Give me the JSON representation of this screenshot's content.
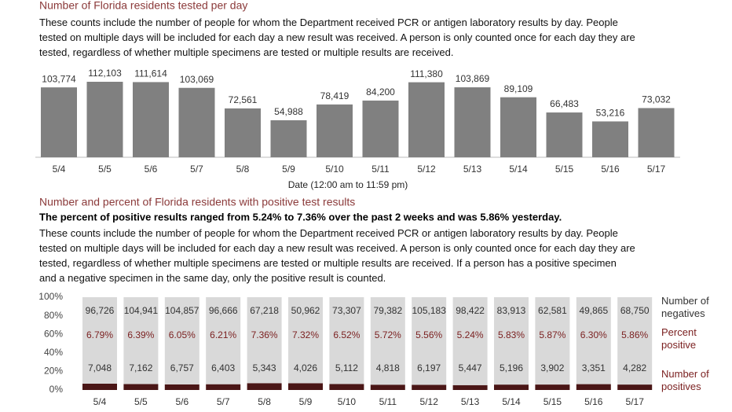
{
  "chart_data": [
    {
      "type": "bar",
      "title": "Number of Florida residents tested per day",
      "description": "These counts include the number of people for whom the Department received PCR or antigen laboratory results by day. People tested on multiple days will be included for each day a new result was received. A person is only counted once for each day they are tested, regardless of whether multiple specimens are tested or multiple results are received.",
      "xlabel": "Date (12:00 am to 11:59 pm)",
      "categories": [
        "5/4",
        "5/5",
        "5/6",
        "5/7",
        "5/8",
        "5/9",
        "5/10",
        "5/11",
        "5/12",
        "5/13",
        "5/14",
        "5/15",
        "5/16",
        "5/17"
      ],
      "values": [
        103774,
        112103,
        111614,
        103069,
        72561,
        54988,
        78419,
        84200,
        111380,
        103869,
        89109,
        66483,
        53216,
        73032
      ],
      "value_labels": [
        "103,774",
        "112,103",
        "111,614",
        "103,069",
        "72,561",
        "54,988",
        "78,419",
        "84,200",
        "111,380",
        "103,869",
        "89,109",
        "66,483",
        "53,216",
        "73,032"
      ],
      "color": "#808080"
    },
    {
      "type": "stacked_percent",
      "title": "Number and percent of Florida residents with positive test results",
      "subtitle": "The percent of positive results ranged from 5.24% to 7.36% over the past 2 weeks and was 5.86% yesterday.",
      "description": "These counts include the number of people for whom the Department received PCR or antigen laboratory results by day. People tested on multiple days will be included for each day a new result was received. A person is only counted once for each day they are tested, regardless of whether multiple specimens are tested or multiple results are received. If a person has a positive specimen and a negative specimen in the same day, only the positive result is counted.",
      "categories": [
        "5/4",
        "5/5",
        "5/6",
        "5/7",
        "5/8",
        "5/9",
        "5/10",
        "5/11",
        "5/12",
        "5/13",
        "5/14",
        "5/15",
        "5/16",
        "5/17"
      ],
      "ylim": [
        0,
        100
      ],
      "yticks": [
        {
          "value": 0,
          "label": "0%"
        },
        {
          "value": 20,
          "label": "20%"
        },
        {
          "value": 40,
          "label": "40%"
        },
        {
          "value": 60,
          "label": "60%"
        },
        {
          "value": 80,
          "label": "80%"
        },
        {
          "value": 100,
          "label": "100%"
        }
      ],
      "series": [
        {
          "name": "Number of positives",
          "color": "#4a1616",
          "values": [
            7048,
            7162,
            6757,
            6403,
            5343,
            4026,
            5112,
            4818,
            6197,
            5447,
            5196,
            3902,
            3351,
            4282
          ],
          "value_labels": [
            "7,048",
            "7,162",
            "6,757",
            "6,403",
            "5,343",
            "4,026",
            "5,112",
            "4,818",
            "6,197",
            "5,447",
            "5,196",
            "3,902",
            "3,351",
            "4,282"
          ]
        },
        {
          "name": "Number of negatives",
          "color": "#d9d9d9",
          "values": [
            96726,
            104941,
            104857,
            96666,
            67218,
            50962,
            73307,
            79382,
            105183,
            98422,
            83913,
            62581,
            49865,
            68750
          ],
          "value_labels": [
            "96,726",
            "104,941",
            "104,857",
            "96,666",
            "67,218",
            "50,962",
            "73,307",
            "79,382",
            "105,183",
            "98,422",
            "83,913",
            "62,581",
            "49,865",
            "68,750"
          ]
        }
      ],
      "percent_positive": {
        "name": "Percent positive",
        "color": "#7a1f1f",
        "values": [
          6.79,
          6.39,
          6.05,
          6.21,
          7.36,
          7.32,
          6.52,
          5.72,
          5.56,
          5.24,
          5.83,
          5.87,
          6.3,
          5.86
        ],
        "value_labels": [
          "6.79%",
          "6.39%",
          "6.05%",
          "6.21%",
          "7.36%",
          "7.32%",
          "6.52%",
          "5.72%",
          "5.56%",
          "5.24%",
          "5.83%",
          "5.87%",
          "6.30%",
          "5.86%"
        ]
      }
    }
  ]
}
